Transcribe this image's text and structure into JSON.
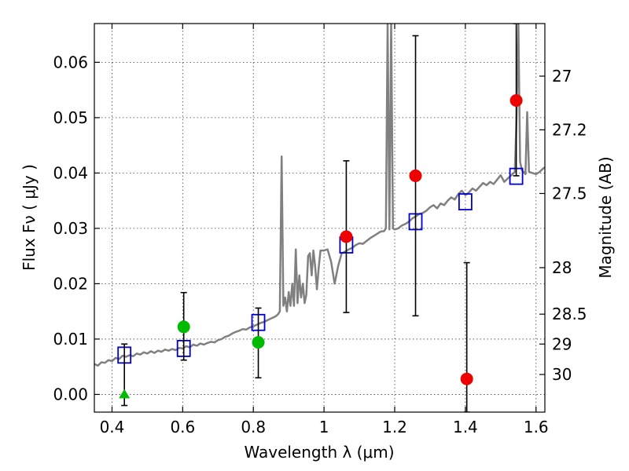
{
  "chart_data": {
    "type": "scatter",
    "title": "",
    "xlabel": "Wavelength  λ (μm)",
    "ylabel": "Flux  Fν  ( μJy )",
    "y2label": "Magnitude (AB)",
    "xlim": [
      0.35,
      1.625
    ],
    "ylim": [
      -0.0032,
      0.067
    ],
    "xticks": [
      0.4,
      0.6,
      0.8,
      1.0,
      1.2,
      1.4,
      1.6
    ],
    "xtick_labels": [
      "0.4",
      "0.6",
      "0.8",
      "1",
      "1.2",
      "1.4",
      "1.6"
    ],
    "yticks": [
      0.0,
      0.01,
      0.02,
      0.03,
      0.04,
      0.05,
      0.06
    ],
    "ytick_labels": [
      "0.00",
      "0.01",
      "0.02",
      "0.03",
      "0.04",
      "0.05",
      "0.06"
    ],
    "y2ticks": [
      {
        "label": "27",
        "flux": 0.0575
      },
      {
        "label": "27.2",
        "flux": 0.0478
      },
      {
        "label": "27.5",
        "flux": 0.0363
      },
      {
        "label": "28",
        "flux": 0.0229
      },
      {
        "label": "28.5",
        "flux": 0.0145
      },
      {
        "label": "29",
        "flux": 0.0091
      },
      {
        "label": "30",
        "flux": 0.0036
      }
    ],
    "grid": true,
    "series": [
      {
        "kind": "line",
        "color": "#808080",
        "points": [
          [
            0.35,
            0.0055
          ],
          [
            0.36,
            0.0052
          ],
          [
            0.37,
            0.0058
          ],
          [
            0.38,
            0.0057
          ],
          [
            0.39,
            0.0062
          ],
          [
            0.4,
            0.006
          ],
          [
            0.41,
            0.0066
          ],
          [
            0.42,
            0.0064
          ],
          [
            0.43,
            0.007
          ],
          [
            0.44,
            0.0068
          ],
          [
            0.45,
            0.0071
          ],
          [
            0.46,
            0.0069
          ],
          [
            0.47,
            0.0074
          ],
          [
            0.48,
            0.0072
          ],
          [
            0.49,
            0.0076
          ],
          [
            0.5,
            0.0074
          ],
          [
            0.51,
            0.0078
          ],
          [
            0.52,
            0.0075
          ],
          [
            0.53,
            0.0079
          ],
          [
            0.54,
            0.0077
          ],
          [
            0.55,
            0.0081
          ],
          [
            0.56,
            0.0079
          ],
          [
            0.57,
            0.0082
          ],
          [
            0.58,
            0.008
          ],
          [
            0.59,
            0.0084
          ],
          [
            0.6,
            0.0083
          ],
          [
            0.61,
            0.0087
          ],
          [
            0.62,
            0.0085
          ],
          [
            0.63,
            0.009
          ],
          [
            0.64,
            0.0088
          ],
          [
            0.65,
            0.0092
          ],
          [
            0.66,
            0.009
          ],
          [
            0.67,
            0.0093
          ],
          [
            0.68,
            0.0095
          ],
          [
            0.69,
            0.0094
          ],
          [
            0.7,
            0.0098
          ],
          [
            0.71,
            0.01
          ],
          [
            0.72,
            0.0104
          ],
          [
            0.73,
            0.0106
          ],
          [
            0.74,
            0.011
          ],
          [
            0.75,
            0.0113
          ],
          [
            0.76,
            0.0115
          ],
          [
            0.77,
            0.0118
          ],
          [
            0.78,
            0.0117
          ],
          [
            0.79,
            0.0121
          ],
          [
            0.8,
            0.0123
          ],
          [
            0.81,
            0.0126
          ],
          [
            0.82,
            0.0129
          ],
          [
            0.83,
            0.0131
          ],
          [
            0.84,
            0.0134
          ],
          [
            0.85,
            0.0137
          ],
          [
            0.86,
            0.014
          ],
          [
            0.865,
            0.0142
          ],
          [
            0.87,
            0.0145
          ],
          [
            0.875,
            0.015
          ],
          [
            0.88,
            0.043
          ],
          [
            0.885,
            0.016
          ],
          [
            0.89,
            0.0175
          ],
          [
            0.895,
            0.015
          ],
          [
            0.9,
            0.0185
          ],
          [
            0.905,
            0.016
          ],
          [
            0.91,
            0.02
          ],
          [
            0.915,
            0.016
          ],
          [
            0.92,
            0.0262
          ],
          [
            0.925,
            0.0165
          ],
          [
            0.93,
            0.0215
          ],
          [
            0.935,
            0.0175
          ],
          [
            0.94,
            0.02
          ],
          [
            0.945,
            0.0165
          ],
          [
            0.95,
            0.018
          ],
          [
            0.955,
            0.025
          ],
          [
            0.96,
            0.0255
          ],
          [
            0.965,
            0.0215
          ],
          [
            0.97,
            0.026
          ],
          [
            0.975,
            0.023
          ],
          [
            0.98,
            0.019
          ],
          [
            0.985,
            0.023
          ],
          [
            0.99,
            0.026
          ],
          [
            1.0,
            0.026
          ],
          [
            1.01,
            0.0262
          ],
          [
            1.02,
            0.024
          ],
          [
            1.03,
            0.02
          ],
          [
            1.04,
            0.0232
          ],
          [
            1.05,
            0.0255
          ],
          [
            1.06,
            0.0258
          ],
          [
            1.07,
            0.0262
          ],
          [
            1.08,
            0.0265
          ],
          [
            1.09,
            0.027
          ],
          [
            1.1,
            0.0273
          ],
          [
            1.11,
            0.0272
          ],
          [
            1.12,
            0.0277
          ],
          [
            1.13,
            0.0282
          ],
          [
            1.14,
            0.0286
          ],
          [
            1.15,
            0.029
          ],
          [
            1.16,
            0.0294
          ],
          [
            1.17,
            0.0295
          ],
          [
            1.175,
            0.03
          ],
          [
            1.18,
            0.067
          ],
          [
            1.185,
            0.0298
          ],
          [
            1.19,
            0.067
          ],
          [
            1.195,
            0.03
          ],
          [
            1.2,
            0.0298
          ],
          [
            1.21,
            0.03
          ],
          [
            1.22,
            0.0305
          ],
          [
            1.23,
            0.0308
          ],
          [
            1.24,
            0.0312
          ],
          [
            1.25,
            0.0318
          ],
          [
            1.26,
            0.0322
          ],
          [
            1.27,
            0.0326
          ],
          [
            1.28,
            0.0328
          ],
          [
            1.29,
            0.0332
          ],
          [
            1.3,
            0.0338
          ],
          [
            1.31,
            0.0342
          ],
          [
            1.32,
            0.0336
          ],
          [
            1.33,
            0.0345
          ],
          [
            1.34,
            0.0342
          ],
          [
            1.35,
            0.035
          ],
          [
            1.36,
            0.0356
          ],
          [
            1.37,
            0.0352
          ],
          [
            1.38,
            0.0362
          ],
          [
            1.39,
            0.0368
          ],
          [
            1.4,
            0.036
          ],
          [
            1.41,
            0.0365
          ],
          [
            1.42,
            0.0372
          ],
          [
            1.43,
            0.0368
          ],
          [
            1.44,
            0.0375
          ],
          [
            1.45,
            0.0382
          ],
          [
            1.46,
            0.0378
          ],
          [
            1.47,
            0.0384
          ],
          [
            1.48,
            0.038
          ],
          [
            1.49,
            0.0388
          ],
          [
            1.5,
            0.0396
          ],
          [
            1.51,
            0.0384
          ],
          [
            1.52,
            0.039
          ],
          [
            1.53,
            0.0396
          ],
          [
            1.54,
            0.0402
          ],
          [
            1.545,
            0.05
          ],
          [
            1.55,
            0.067
          ],
          [
            1.555,
            0.042
          ],
          [
            1.56,
            0.0405
          ],
          [
            1.57,
            0.0398
          ],
          [
            1.575,
            0.051
          ],
          [
            1.58,
            0.0402
          ],
          [
            1.59,
            0.04
          ],
          [
            1.6,
            0.0398
          ],
          [
            1.61,
            0.0402
          ],
          [
            1.62,
            0.0408
          ],
          [
            1.625,
            0.041
          ]
        ]
      },
      {
        "kind": "open-square",
        "color": "#0000cc",
        "points": [
          [
            0.435,
            0.0071
          ],
          [
            0.603,
            0.0083
          ],
          [
            0.814,
            0.013
          ],
          [
            1.063,
            0.027
          ],
          [
            1.259,
            0.0312
          ],
          [
            1.4,
            0.0348
          ],
          [
            1.544,
            0.0394
          ]
        ]
      },
      {
        "kind": "errorbar",
        "color": "#000000",
        "points": [
          {
            "x": 0.435,
            "ylow": -0.002,
            "yhigh": 0.0091
          },
          {
            "x": 0.603,
            "ylow": 0.0062,
            "yhigh": 0.0184
          },
          {
            "x": 0.814,
            "ylow": 0.003,
            "yhigh": 0.0156
          },
          {
            "x": 1.063,
            "ylow": 0.0148,
            "yhigh": 0.0422
          },
          {
            "x": 1.259,
            "ylow": 0.0142,
            "yhigh": 0.0648
          },
          {
            "x": 1.404,
            "ylow": -0.0032,
            "yhigh": 0.0238
          },
          {
            "x": 1.544,
            "ylow": 0.0395,
            "yhigh": 0.067
          }
        ]
      },
      {
        "kind": "circle",
        "color": "#00bb00",
        "points": [
          [
            0.603,
            0.0122
          ],
          [
            0.814,
            0.0094
          ]
        ]
      },
      {
        "kind": "triangle",
        "color": "#00bb00",
        "points": [
          [
            0.435,
            0.0
          ]
        ]
      },
      {
        "kind": "circle",
        "color": "#ee0000",
        "points": [
          [
            1.063,
            0.0285
          ],
          [
            1.259,
            0.0395
          ],
          [
            1.404,
            0.0028
          ],
          [
            1.544,
            0.0531
          ]
        ]
      }
    ]
  }
}
